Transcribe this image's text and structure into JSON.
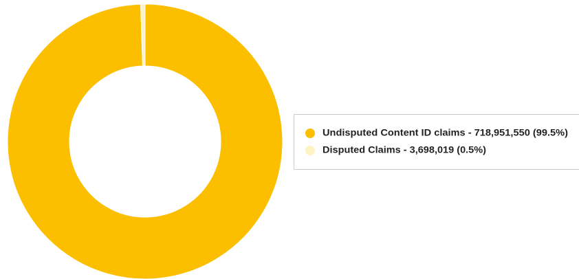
{
  "chart_data": {
    "type": "donut",
    "categories": [
      "Undisputed Content ID claims -  718,951,550 (99.5%)",
      "Disputed Claims - 3,698,019 (0.5%)"
    ],
    "values": [
      718951550,
      3698019
    ],
    "colors": [
      "#fbbf00",
      "#fff3c4"
    ],
    "legend": "right"
  }
}
